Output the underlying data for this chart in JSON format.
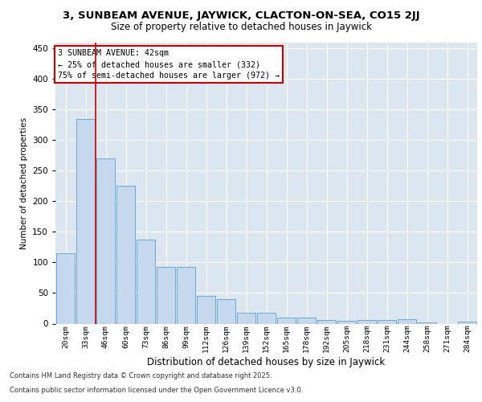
{
  "title_line1": "3, SUNBEAM AVENUE, JAYWICK, CLACTON-ON-SEA, CO15 2JJ",
  "title_line2": "Size of property relative to detached houses in Jaywick",
  "xlabel": "Distribution of detached houses by size in Jaywick",
  "ylabel": "Number of detached properties",
  "categories": [
    "20sqm",
    "33sqm",
    "46sqm",
    "60sqm",
    "73sqm",
    "86sqm",
    "99sqm",
    "112sqm",
    "126sqm",
    "139sqm",
    "152sqm",
    "165sqm",
    "178sqm",
    "192sqm",
    "205sqm",
    "218sqm",
    "231sqm",
    "244sqm",
    "258sqm",
    "271sqm",
    "284sqm"
  ],
  "values": [
    115,
    335,
    270,
    225,
    138,
    93,
    93,
    45,
    40,
    18,
    18,
    10,
    10,
    6,
    5,
    6,
    6,
    7,
    2,
    0,
    3
  ],
  "bar_color": "#c5d8ee",
  "bar_edge_color": "#6aaad4",
  "vline_x": 1.5,
  "vline_color": "#cc0000",
  "annotation_title": "3 SUNBEAM AVENUE: 42sqm",
  "annotation_line1": "← 25% of detached houses are smaller (332)",
  "annotation_line2": "75% of semi-detached houses are larger (972) →",
  "annotation_box_color": "#ffffff",
  "annotation_box_edge": "#cc0000",
  "ylim": [
    0,
    460
  ],
  "yticks": [
    0,
    50,
    100,
    150,
    200,
    250,
    300,
    350,
    400,
    450
  ],
  "background_color": "#dce6f1",
  "plot_bg": "#dce6f1",
  "fig_bg": "#ffffff",
  "grid_color": "#ffffff",
  "footnote1": "Contains HM Land Registry data © Crown copyright and database right 2025.",
  "footnote2": "Contains public sector information licensed under the Open Government Licence v3.0."
}
